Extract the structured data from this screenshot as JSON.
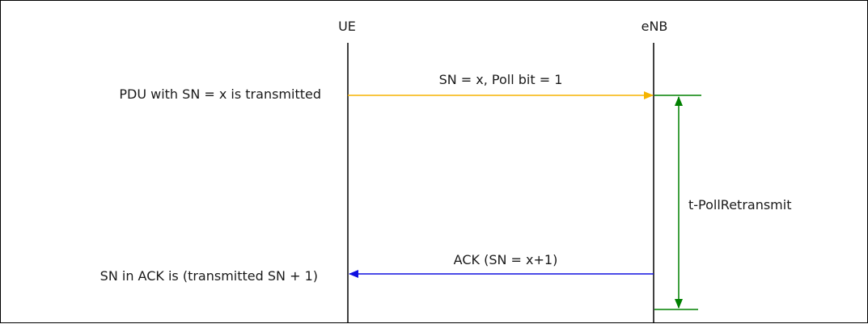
{
  "entities": {
    "ue": "UE",
    "enb": "eNB"
  },
  "messages": {
    "poll_pdu": "SN = x, Poll bit = 1",
    "ack": "ACK (SN = x+1)"
  },
  "notes": {
    "pdu_transmitted": "PDU with SN = x is transmitted",
    "ack_rule": "SN in ACK is (transmitted SN + 1)"
  },
  "timer": {
    "label": "t-PollRetransmit"
  },
  "colors": {
    "poll_arrow": "#f5b400",
    "ack_arrow": "#1010e0",
    "timer": "#008000",
    "lifeline": "#000000"
  }
}
